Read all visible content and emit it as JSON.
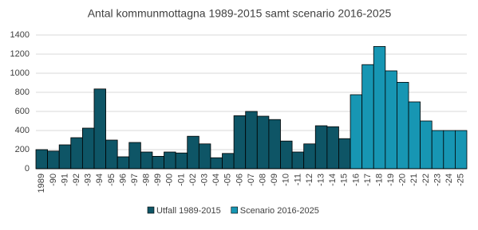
{
  "chart_data": {
    "type": "bar",
    "title": "Antal kommunmottagna 1989-2015 samt scenario 2016-2025",
    "categories": [
      "1989",
      "-90",
      "-91",
      "-92",
      "-93",
      "-94",
      "-95",
      "-96",
      "-97",
      "-98",
      "-99",
      "-00",
      "-01",
      "-02",
      "-03",
      "-04",
      "-05",
      "-06",
      "-07",
      "-08",
      "-09",
      "-10",
      "-11",
      "-12",
      "-13",
      "-14",
      "-15",
      "-16",
      "-17",
      "-18",
      "-19",
      "-20",
      "-21",
      "-22",
      "-23",
      "-24",
      "-25"
    ],
    "series": [
      {
        "name": "Utfall 1989-2015",
        "color": "#0e5566",
        "values": [
          200,
          185,
          250,
          325,
          425,
          835,
          300,
          125,
          275,
          175,
          130,
          175,
          165,
          340,
          260,
          115,
          160,
          555,
          600,
          550,
          515,
          290,
          175,
          260,
          450,
          440,
          315,
          null,
          null,
          null,
          null,
          null,
          null,
          null,
          null,
          null,
          null
        ]
      },
      {
        "name": "Scenario 2016-2025",
        "color": "#1796b3",
        "values": [
          null,
          null,
          null,
          null,
          null,
          null,
          null,
          null,
          null,
          null,
          null,
          null,
          null,
          null,
          null,
          null,
          null,
          null,
          null,
          null,
          null,
          null,
          null,
          null,
          null,
          null,
          null,
          775,
          1090,
          1280,
          1025,
          905,
          700,
          500,
          400,
          400,
          400
        ]
      }
    ],
    "ylim": [
      0,
      1400
    ],
    "yticks": [
      0,
      200,
      400,
      600,
      800,
      1000,
      1200,
      1400
    ],
    "grid": true,
    "legend": "bottom"
  }
}
